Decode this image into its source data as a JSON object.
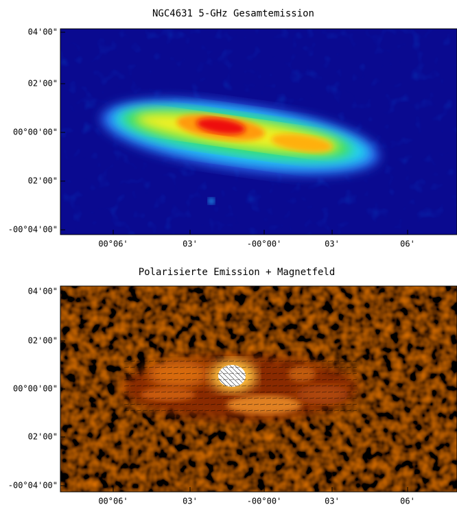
{
  "panels": [
    {
      "title": "NGC4631 5-GHz Gesamtemission",
      "yticks": [
        "04'00\"",
        "02'00\"",
        "00°00'00\"",
        "02'00\"",
        "-00°04'00\""
      ],
      "xticks": [
        "00°06'",
        "03'",
        "-00°00'",
        "03'",
        "06'"
      ]
    },
    {
      "title": "Polarisierte Emission + Magnetfeld",
      "yticks": [
        "04'00\"",
        "02'00\"",
        "00°00'00\"",
        "02'00\"",
        "-00°04'00\""
      ],
      "xticks": [
        "00°06'",
        "03'",
        "-00°00'",
        "03'",
        "06'"
      ]
    }
  ]
}
